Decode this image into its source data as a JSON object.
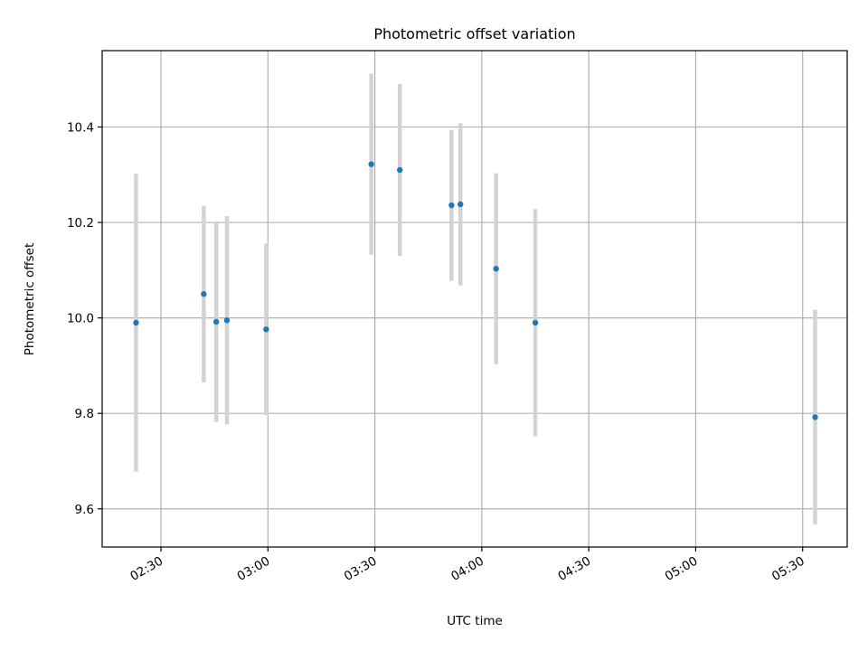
{
  "chart_data": {
    "type": "scatter",
    "title": "Photometric offset variation",
    "xlabel": "UTC time",
    "ylabel": "Photometric offset",
    "x_ticks": [
      "02:30",
      "03:00",
      "03:30",
      "04:00",
      "04:30",
      "05:00",
      "05:30"
    ],
    "y_ticks": [
      "9.6",
      "9.8",
      "10.0",
      "10.2",
      "10.4"
    ],
    "xlim": [
      "02:13:30",
      "05:42:30"
    ],
    "ylim": [
      9.52,
      10.56
    ],
    "grid": true,
    "colors": {
      "point": "#1f77b4",
      "errorbar": "#d3d3d3"
    },
    "series": [
      {
        "points": [
          {
            "x": "02:23",
            "y": 9.99,
            "yerr": 0.312
          },
          {
            "x": "02:42",
            "y": 10.05,
            "yerr": 0.185
          },
          {
            "x": "02:45:30",
            "y": 9.992,
            "yerr": 0.21
          },
          {
            "x": "02:48:30",
            "y": 9.995,
            "yerr": 0.218
          },
          {
            "x": "02:59:30",
            "y": 9.976,
            "yerr": 0.18
          },
          {
            "x": "03:29",
            "y": 10.322,
            "yerr": 0.19
          },
          {
            "x": "03:37",
            "y": 10.31,
            "yerr": 0.18
          },
          {
            "x": "03:51:30",
            "y": 10.236,
            "yerr": 0.158
          },
          {
            "x": "03:54",
            "y": 10.238,
            "yerr": 0.17
          },
          {
            "x": "04:04",
            "y": 10.103,
            "yerr": 0.2
          },
          {
            "x": "04:15",
            "y": 9.99,
            "yerr": 0.238
          },
          {
            "x": "05:33:30",
            "y": 9.792,
            "yerr": 0.225
          }
        ]
      }
    ]
  }
}
